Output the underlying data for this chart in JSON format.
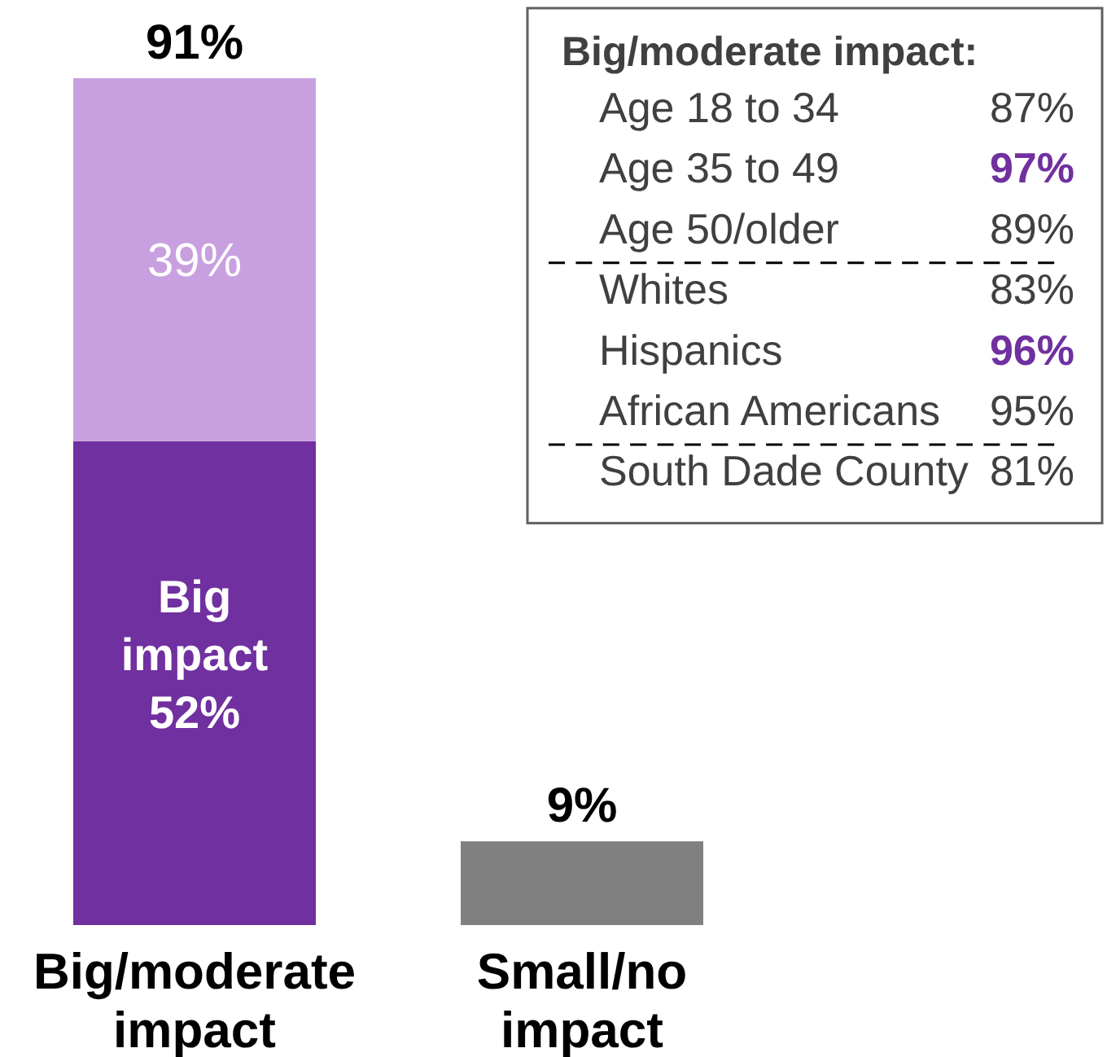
{
  "chart_data": [
    {
      "type": "bar",
      "categories": [
        "Big/moderate impact",
        "Small/no impact"
      ],
      "stacked": true,
      "series": [
        {
          "name": "Big impact",
          "color": "#7030a0",
          "values": [
            52,
            null
          ],
          "value_labels": [
            "52%",
            null
          ]
        },
        {
          "color": "#c8a0e0",
          "values": [
            39,
            null
          ],
          "value_labels": [
            "39%",
            null
          ]
        },
        {
          "color": "#808080",
          "values": [
            null,
            9
          ]
        }
      ],
      "totals": [
        "91%",
        "9%"
      ]
    },
    {
      "type": "other",
      "title": "Big/moderate impact:",
      "categories": [
        "Age 18 to 34",
        "Age 35 to 49",
        "Age 50/older",
        "Whites",
        "Hispanics",
        "African Americans",
        "South Dade County"
      ],
      "values": [
        87,
        97,
        89,
        83,
        96,
        95,
        81
      ],
      "value_labels": [
        "87%",
        "97%",
        "89%",
        "83%",
        "96%",
        "95%",
        "81%"
      ],
      "colors": [
        "#404040",
        "#7030a0",
        "#404040",
        "#404040",
        "#7030a0",
        "#404040",
        "#404040"
      ]
    }
  ]
}
